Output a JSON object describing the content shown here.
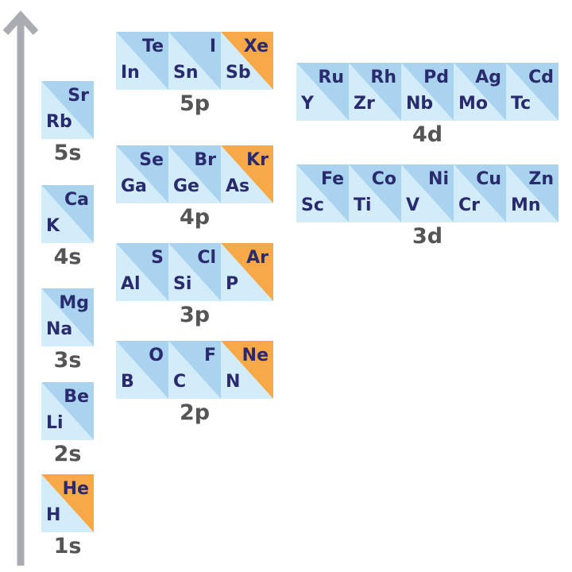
{
  "colors": {
    "light": "#d3ecf9",
    "dark": "#a9d3ee",
    "noble": "#f7a847",
    "text": "#2a2a6e",
    "label": "#555555",
    "arrow": "#a9acb0"
  },
  "blocks": [
    {
      "label": "1s",
      "pairs": [
        {
          "top": "He",
          "bottom": "H",
          "noble": true
        }
      ]
    },
    {
      "label": "2s",
      "pairs": [
        {
          "top": "Be",
          "bottom": "Li",
          "noble": false
        }
      ]
    },
    {
      "label": "3s",
      "pairs": [
        {
          "top": "Mg",
          "bottom": "Na",
          "noble": false
        }
      ]
    },
    {
      "label": "4s",
      "pairs": [
        {
          "top": "Ca",
          "bottom": "K",
          "noble": false
        }
      ]
    },
    {
      "label": "5s",
      "pairs": [
        {
          "top": "Sr",
          "bottom": "Rb",
          "noble": false
        }
      ]
    },
    {
      "label": "2p",
      "pairs": [
        {
          "top": "O",
          "bottom": "B",
          "noble": false
        },
        {
          "top": "F",
          "bottom": "C",
          "noble": false
        },
        {
          "top": "Ne",
          "bottom": "N",
          "noble": true
        }
      ]
    },
    {
      "label": "3p",
      "pairs": [
        {
          "top": "S",
          "bottom": "Al",
          "noble": false
        },
        {
          "top": "Cl",
          "bottom": "Si",
          "noble": false
        },
        {
          "top": "Ar",
          "bottom": "P",
          "noble": true
        }
      ]
    },
    {
      "label": "4p",
      "pairs": [
        {
          "top": "Se",
          "bottom": "Ga",
          "noble": false
        },
        {
          "top": "Br",
          "bottom": "Ge",
          "noble": false
        },
        {
          "top": "Kr",
          "bottom": "As",
          "noble": true
        }
      ]
    },
    {
      "label": "5p",
      "pairs": [
        {
          "top": "Te",
          "bottom": "In",
          "noble": false
        },
        {
          "top": "I",
          "bottom": "Sn",
          "noble": false
        },
        {
          "top": "Xe",
          "bottom": "Sb",
          "noble": true
        }
      ]
    },
    {
      "label": "3d",
      "pairs": [
        {
          "top": "Fe",
          "bottom": "Sc",
          "noble": false
        },
        {
          "top": "Co",
          "bottom": "Ti",
          "noble": false
        },
        {
          "top": "Ni",
          "bottom": "V",
          "noble": false
        },
        {
          "top": "Cu",
          "bottom": "Cr",
          "noble": false
        },
        {
          "top": "Zn",
          "bottom": "Mn",
          "noble": false
        }
      ]
    },
    {
      "label": "4d",
      "pairs": [
        {
          "top": "Ru",
          "bottom": "Y",
          "noble": false
        },
        {
          "top": "Rh",
          "bottom": "Zr",
          "noble": false
        },
        {
          "top": "Pd",
          "bottom": "Nb",
          "noble": false
        },
        {
          "top": "Ag",
          "bottom": "Mo",
          "noble": false
        },
        {
          "top": "Cd",
          "bottom": "Tc",
          "noble": false
        }
      ]
    }
  ]
}
